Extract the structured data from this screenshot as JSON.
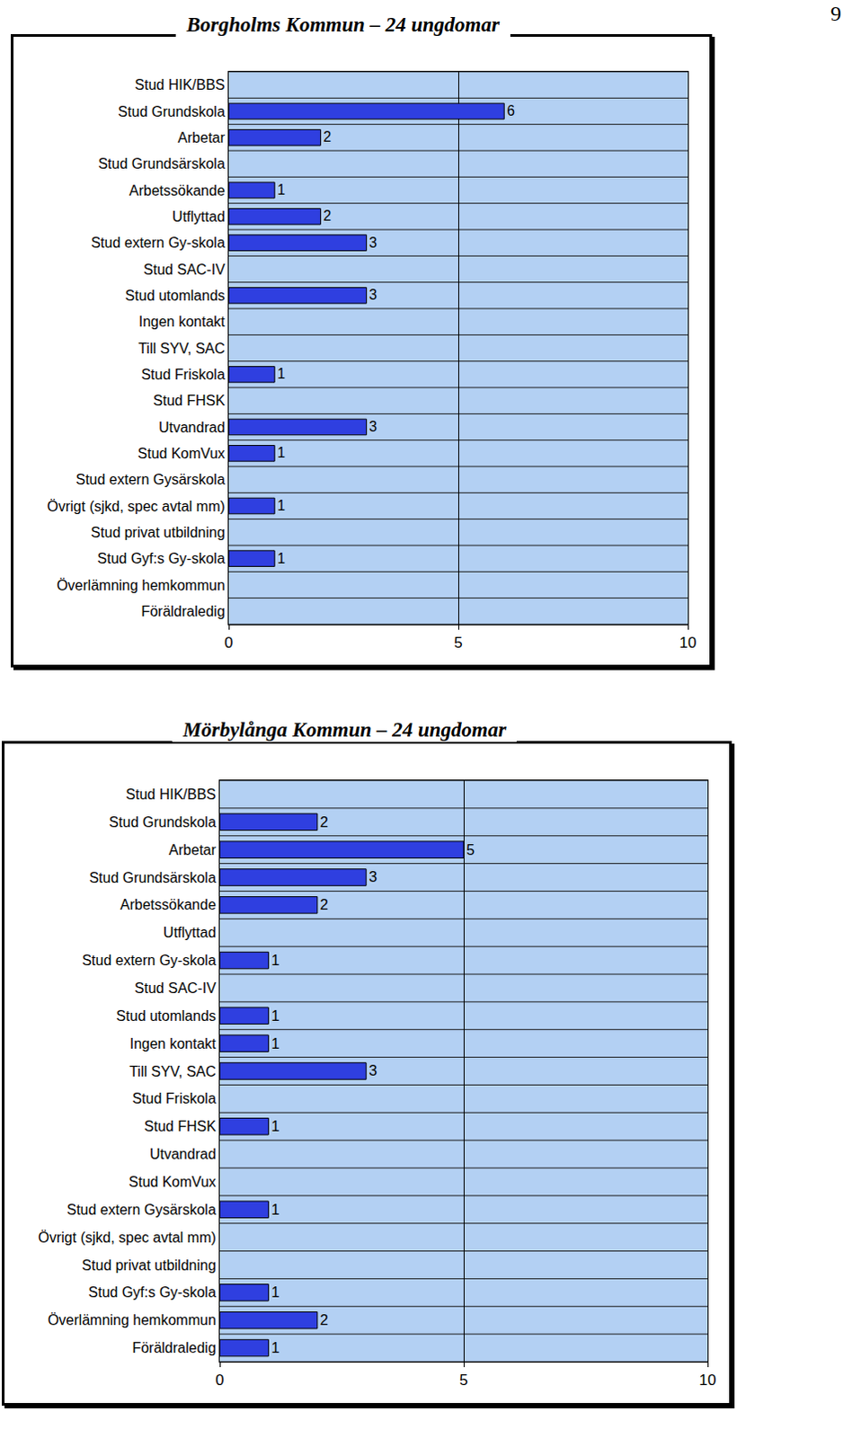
{
  "page_number": 9,
  "chart_data": [
    {
      "type": "bar",
      "title": "Borgholms Kommun – 24 ungdomar",
      "orientation": "horizontal",
      "categories": [
        "Stud HIK/BBS",
        "Stud Grundskola",
        "Arbetar",
        "Stud Grundsärskola",
        "Arbetssökande",
        "Utflyttad",
        "Stud extern Gy-skola",
        "Stud SAC-IV",
        "Stud utomlands",
        "Ingen kontakt",
        "Till SYV, SAC",
        "Stud Friskola",
        "Stud FHSK",
        "Utvandrad",
        "Stud KomVux",
        "Stud extern Gysärskola",
        "Övrigt (sjkd, spec avtal mm)",
        "Stud privat utbildning",
        "Stud Gyf:s Gy-skola",
        "Överlämning hemkommun",
        "Föräldraledig"
      ],
      "values": [
        null,
        6,
        2,
        null,
        1,
        2,
        3,
        null,
        3,
        null,
        null,
        1,
        null,
        3,
        1,
        null,
        1,
        null,
        1,
        null,
        null
      ],
      "color": "#2f3fe0",
      "xlim": [
        0,
        10
      ],
      "xticks": [
        0,
        5,
        10
      ],
      "grid": true,
      "data_labels": true
    },
    {
      "type": "bar",
      "title": "Mörbylånga Kommun – 24 ungdomar",
      "orientation": "horizontal",
      "categories": [
        "Stud HIK/BBS",
        "Stud Grundskola",
        "Arbetar",
        "Stud Grundsärskola",
        "Arbetssökande",
        "Utflyttad",
        "Stud extern Gy-skola",
        "Stud SAC-IV",
        "Stud utomlands",
        "Ingen kontakt",
        "Till SYV, SAC",
        "Stud Friskola",
        "Stud FHSK",
        "Utvandrad",
        "Stud KomVux",
        "Stud extern Gysärskola",
        "Övrigt (sjkd, spec avtal mm)",
        "Stud privat utbildning",
        "Stud Gyf:s Gy-skola",
        "Överlämning hemkommun",
        "Föräldraledig"
      ],
      "values": [
        null,
        2,
        5,
        3,
        2,
        null,
        1,
        null,
        1,
        1,
        3,
        null,
        1,
        null,
        null,
        1,
        null,
        null,
        1,
        2,
        1
      ],
      "color": "#2f3fe0",
      "xlim": [
        0,
        10
      ],
      "xticks": [
        0,
        5,
        10
      ],
      "grid": true,
      "data_labels": true
    }
  ]
}
